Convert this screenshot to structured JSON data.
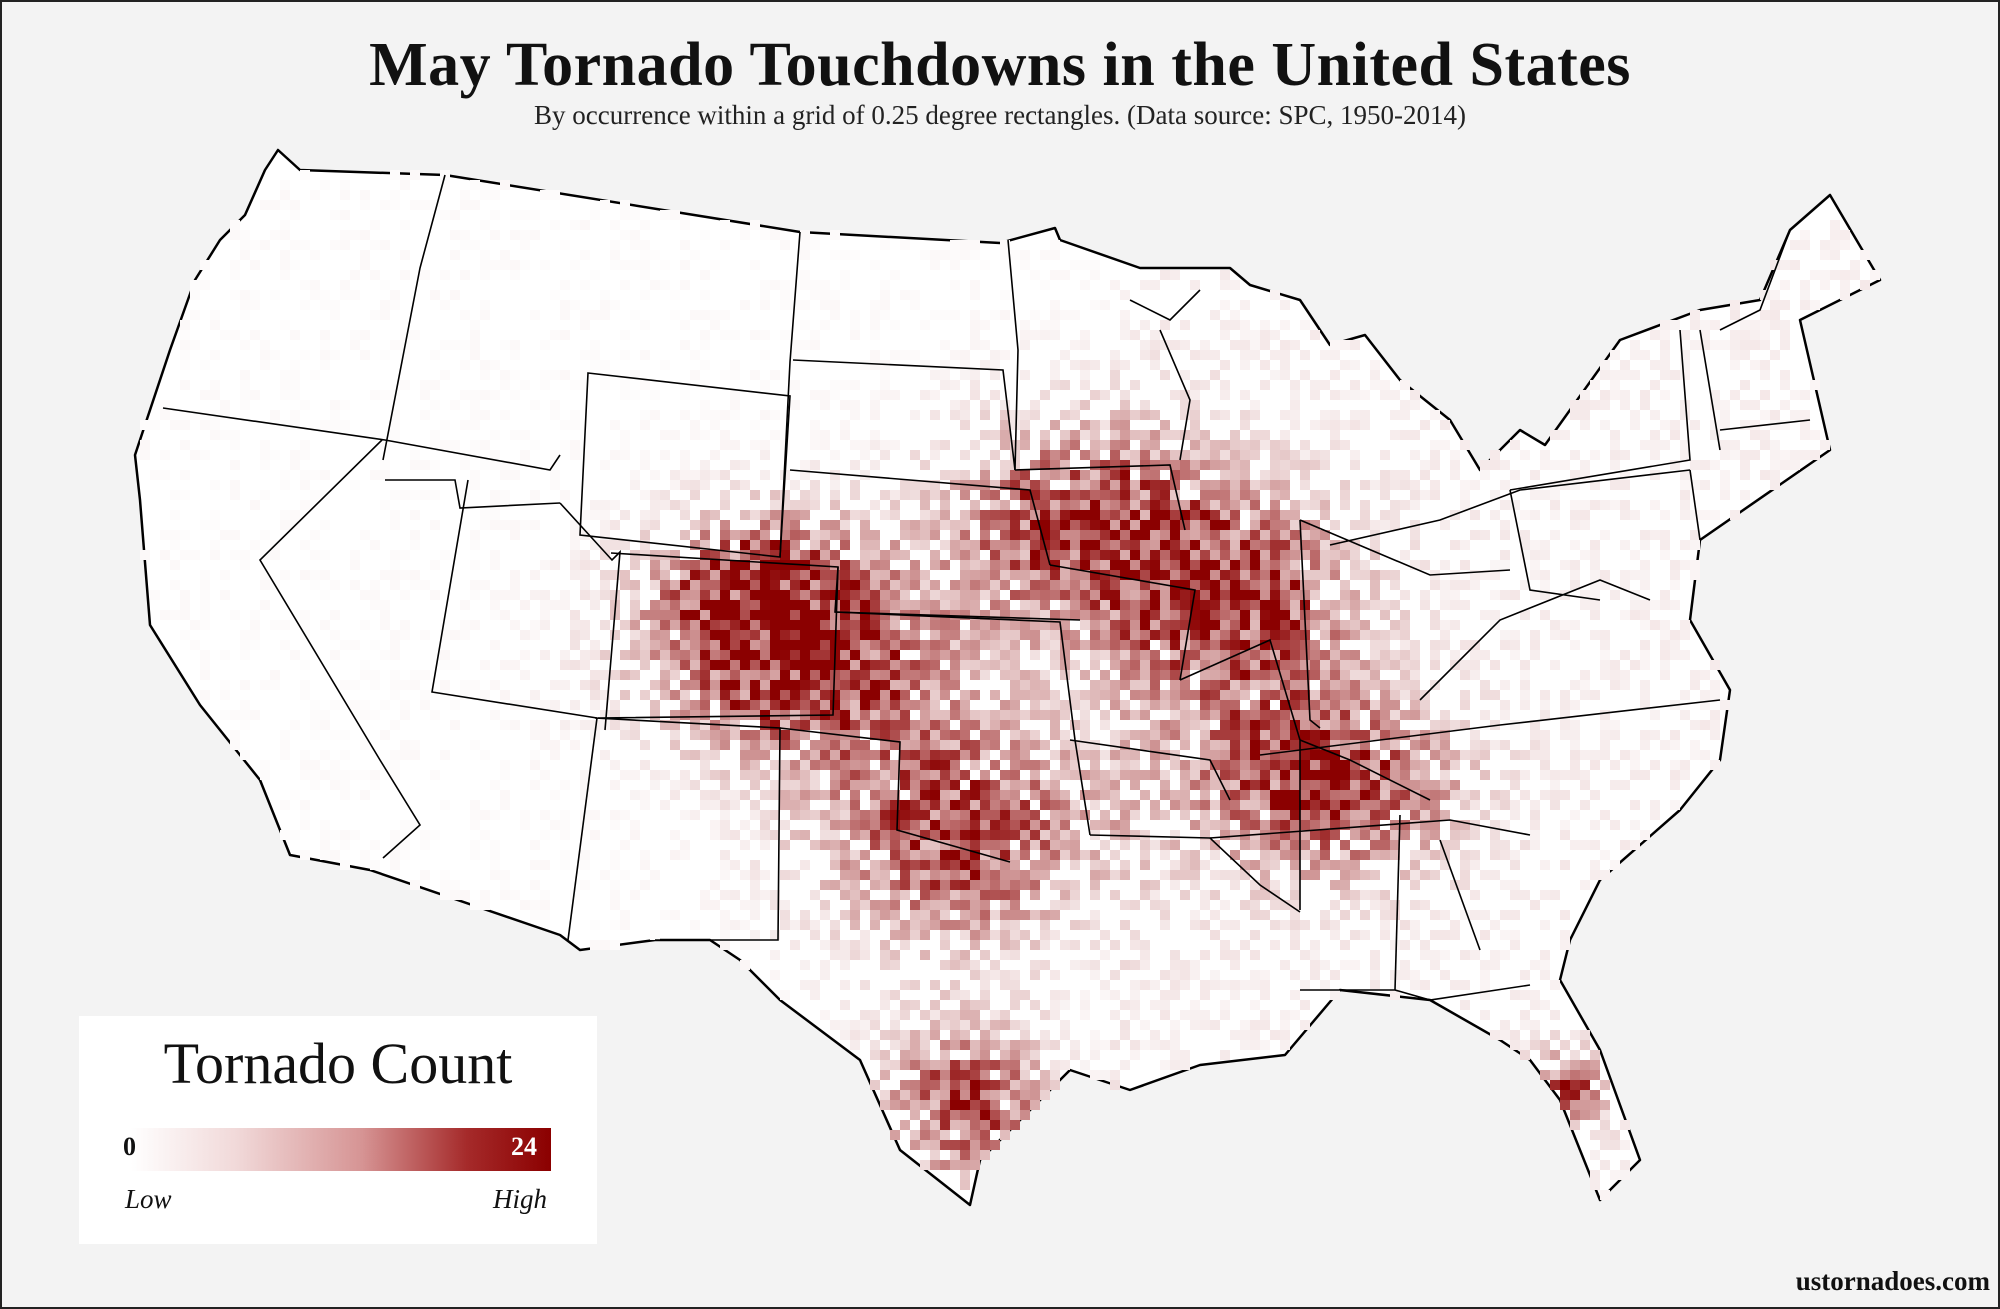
{
  "title": "May Tornado Touchdowns in the United States",
  "subtitle": "By occurrence within a grid of 0.25 degree rectangles. (Data source: SPC, 1950-2014)",
  "legend": {
    "title": "Tornado Count",
    "min": "0",
    "max": "24",
    "low_label": "Low",
    "high_label": "High",
    "color_low": "#ffffff",
    "color_high": "#8b0000"
  },
  "credit": "ustornadoes.com",
  "colors": {
    "background": "#f3f3f3",
    "land": "#ffffff",
    "border": "#000000",
    "accent": "#8b0000"
  }
}
